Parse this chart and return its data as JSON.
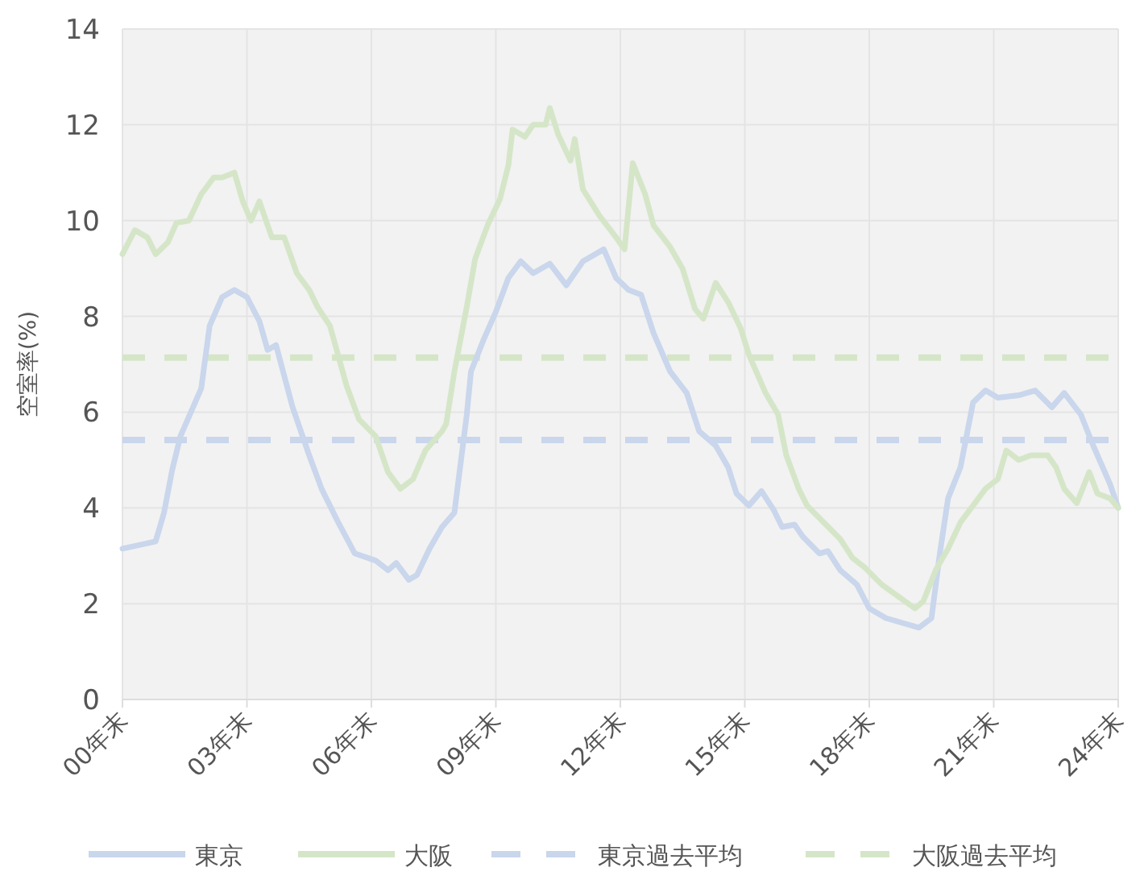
{
  "chart_data": {
    "type": "line",
    "ylabel": "空室率(%)",
    "xlim": [
      0,
      24
    ],
    "xticks": [
      {
        "value": 0,
        "label": "00年末"
      },
      {
        "value": 3,
        "label": "03年末"
      },
      {
        "value": 6,
        "label": "06年末"
      },
      {
        "value": 9,
        "label": "09年末"
      },
      {
        "value": 12,
        "label": "12年末"
      },
      {
        "value": 15,
        "label": "15年末"
      },
      {
        "value": 18,
        "label": "18年末"
      },
      {
        "value": 21,
        "label": "21年末"
      },
      {
        "value": 24,
        "label": "24年末"
      }
    ],
    "ylim": [
      0,
      14
    ],
    "yticks": [
      0,
      2,
      4,
      6,
      8,
      10,
      12,
      14
    ],
    "grid": true,
    "legend": "bottom",
    "line_style": "solid",
    "series": [
      {
        "name": "東京",
        "color": "#c9d6ec",
        "x": [
          0.0,
          0.8,
          1.0,
          1.2,
          1.4,
          1.7,
          1.9,
          2.1,
          2.4,
          2.7,
          3.0,
          3.3,
          3.5,
          3.7,
          4.1,
          4.5,
          4.8,
          5.2,
          5.6,
          6.1,
          6.4,
          6.6,
          6.9,
          7.1,
          7.4,
          7.7,
          8.0,
          8.3,
          8.4,
          8.7,
          9.0,
          9.3,
          9.6,
          9.9,
          10.3,
          10.7,
          11.1,
          11.6,
          11.9,
          12.2,
          12.5,
          12.8,
          13.2,
          13.6,
          13.9,
          14.3,
          14.6,
          14.8,
          15.1,
          15.4,
          15.7,
          15.9,
          16.2,
          16.4,
          16.8,
          17.0,
          17.3,
          17.7,
          18.0,
          18.4,
          18.8,
          19.2,
          19.5,
          19.7,
          19.9,
          20.2,
          20.5,
          20.8,
          21.1,
          21.6,
          22.0,
          22.4,
          22.7,
          23.1,
          23.4,
          23.8,
          24.0
        ],
        "values": [
          3.15,
          3.3,
          3.9,
          4.8,
          5.5,
          6.1,
          6.5,
          7.8,
          8.4,
          8.55,
          8.4,
          7.9,
          7.3,
          7.4,
          6.1,
          5.1,
          4.4,
          3.7,
          3.05,
          2.9,
          2.7,
          2.85,
          2.5,
          2.6,
          3.15,
          3.6,
          3.9,
          5.95,
          6.85,
          7.5,
          8.1,
          8.8,
          9.15,
          8.9,
          9.1,
          8.65,
          9.15,
          9.4,
          8.8,
          8.55,
          8.45,
          7.65,
          6.85,
          6.4,
          5.6,
          5.3,
          4.85,
          4.3,
          4.05,
          4.35,
          3.95,
          3.6,
          3.65,
          3.4,
          3.05,
          3.1,
          2.7,
          2.4,
          1.9,
          1.7,
          1.6,
          1.5,
          1.7,
          3.05,
          4.2,
          4.85,
          6.2,
          6.45,
          6.3,
          6.35,
          6.45,
          6.1,
          6.4,
          5.95,
          5.3,
          4.5,
          4.0
        ]
      },
      {
        "name": "大阪",
        "color": "#d5e6c8",
        "x": [
          0.0,
          0.3,
          0.6,
          0.8,
          1.1,
          1.3,
          1.6,
          1.9,
          2.2,
          2.4,
          2.7,
          2.9,
          3.1,
          3.3,
          3.6,
          3.9,
          4.2,
          4.5,
          4.7,
          5.0,
          5.4,
          5.7,
          6.1,
          6.4,
          6.7,
          7.0,
          7.3,
          7.7,
          7.8,
          8.0,
          8.3,
          8.5,
          8.8,
          9.1,
          9.3,
          9.4,
          9.7,
          9.9,
          10.2,
          10.3,
          10.5,
          10.8,
          10.9,
          11.1,
          11.5,
          11.9,
          12.1,
          12.3,
          12.6,
          12.8,
          13.2,
          13.5,
          13.8,
          14.0,
          14.3,
          14.6,
          14.9,
          15.1,
          15.5,
          15.8,
          16.0,
          16.3,
          16.5,
          16.9,
          17.3,
          17.6,
          17.9,
          18.3,
          18.7,
          19.1,
          19.3,
          19.6,
          19.9,
          20.2,
          20.5,
          20.8,
          21.1,
          21.3,
          21.6,
          21.9,
          22.3,
          22.5,
          22.7,
          23.0,
          23.3,
          23.5,
          23.8,
          24.0
        ],
        "values": [
          9.3,
          9.8,
          9.65,
          9.3,
          9.55,
          9.95,
          10.0,
          10.55,
          10.9,
          10.9,
          11.0,
          10.4,
          10.0,
          10.4,
          9.65,
          9.65,
          8.9,
          8.55,
          8.2,
          7.8,
          6.55,
          5.85,
          5.5,
          4.75,
          4.4,
          4.6,
          5.2,
          5.6,
          5.75,
          6.85,
          8.2,
          9.2,
          9.9,
          10.45,
          11.15,
          11.9,
          11.75,
          12.0,
          12.0,
          12.35,
          11.8,
          11.25,
          11.7,
          10.65,
          10.1,
          9.65,
          9.4,
          11.2,
          10.55,
          9.9,
          9.45,
          9.0,
          8.15,
          7.95,
          8.7,
          8.3,
          7.75,
          7.2,
          6.4,
          5.95,
          5.1,
          4.4,
          4.05,
          3.7,
          3.35,
          2.95,
          2.75,
          2.4,
          2.15,
          1.9,
          2.05,
          2.7,
          3.15,
          3.7,
          4.05,
          4.4,
          4.6,
          5.2,
          5.0,
          5.1,
          5.1,
          4.85,
          4.4,
          4.1,
          4.75,
          4.3,
          4.2,
          4.0
        ]
      }
    ],
    "ref_lines": [
      {
        "axis": "y",
        "value": 5.42,
        "label": "東京過去平均",
        "color": "#c9d6ec",
        "line_style": "dashed"
      },
      {
        "axis": "y",
        "value": 7.14,
        "label": "大阪過去平均",
        "color": "#d5e6c8",
        "line_style": "dashed"
      }
    ]
  }
}
